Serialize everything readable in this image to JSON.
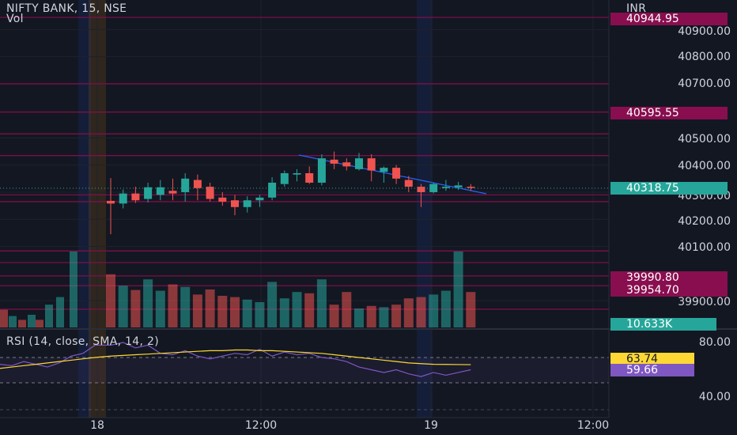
{
  "header": {
    "symbol_line": "NIFTY BANK, 15, NSE",
    "vol_label": "Vol",
    "currency": "INR"
  },
  "price_axis": {
    "labels": [
      "40900.00",
      "40800.00",
      "40700.00",
      "40500.00",
      "40400.00",
      "40300.00",
      "40200.00",
      "40100.00",
      "39900.00"
    ]
  },
  "price_tags": [
    {
      "label": "40944.95",
      "kind": "level",
      "color": "#880e4f"
    },
    {
      "label": "40595.55",
      "kind": "level",
      "color": "#880e4f"
    },
    {
      "label": "40318.75",
      "kind": "last",
      "color": "#26a69a"
    },
    {
      "label": "39990.80",
      "kind": "level",
      "color": "#880e4f"
    },
    {
      "label": "39954.70",
      "kind": "level",
      "color": "#880e4f"
    },
    {
      "label": "10.633K",
      "kind": "volume",
      "color": "#26a69a"
    }
  ],
  "rsi": {
    "legend": "RSI (14, close, SMA, 14, 2)",
    "axis_labels": [
      "80.00",
      "40.00"
    ],
    "value_tag": "59.66",
    "sma_tag": "63.74",
    "rsi_color": "#7e57c2",
    "sma_color": "#fdd835"
  },
  "time_axis": {
    "labels": [
      "18",
      "12:00",
      "19",
      "12:00"
    ]
  },
  "colors": {
    "bull": "#26a69a",
    "bear": "#ef5350",
    "level_line": "#880e4f",
    "trendline": "#2962ff"
  },
  "chart_data": {
    "type": "candlestick",
    "symbol": "NIFTY BANK",
    "interval": "15",
    "exchange": "NSE",
    "candles": [
      {
        "o": 40268,
        "h": 40352,
        "l": 40145,
        "c": 40258
      },
      {
        "o": 40258,
        "h": 40310,
        "l": 40240,
        "c": 40295
      },
      {
        "o": 40295,
        "h": 40320,
        "l": 40260,
        "c": 40270
      },
      {
        "o": 40275,
        "h": 40335,
        "l": 40262,
        "c": 40318
      },
      {
        "o": 40290,
        "h": 40345,
        "l": 40270,
        "c": 40318
      },
      {
        "o": 40305,
        "h": 40350,
        "l": 40270,
        "c": 40295
      },
      {
        "o": 40300,
        "h": 40370,
        "l": 40265,
        "c": 40350
      },
      {
        "o": 40345,
        "h": 40365,
        "l": 40270,
        "c": 40315
      },
      {
        "o": 40320,
        "h": 40335,
        "l": 40265,
        "c": 40275
      },
      {
        "o": 40280,
        "h": 40300,
        "l": 40250,
        "c": 40265
      },
      {
        "o": 40270,
        "h": 40290,
        "l": 40215,
        "c": 40245
      },
      {
        "o": 40245,
        "h": 40285,
        "l": 40225,
        "c": 40270
      },
      {
        "o": 40270,
        "h": 40290,
        "l": 40245,
        "c": 40280
      },
      {
        "o": 40280,
        "h": 40355,
        "l": 40270,
        "c": 40335
      },
      {
        "o": 40330,
        "h": 40380,
        "l": 40320,
        "c": 40370
      },
      {
        "o": 40365,
        "h": 40385,
        "l": 40340,
        "c": 40370
      },
      {
        "o": 40370,
        "h": 40395,
        "l": 40330,
        "c": 40335
      },
      {
        "o": 40335,
        "h": 40440,
        "l": 40325,
        "c": 40425
      },
      {
        "o": 40420,
        "h": 40450,
        "l": 40385,
        "c": 40405
      },
      {
        "o": 40410,
        "h": 40425,
        "l": 40380,
        "c": 40395
      },
      {
        "o": 40385,
        "h": 40445,
        "l": 40380,
        "c": 40425
      },
      {
        "o": 40425,
        "h": 40440,
        "l": 40340,
        "c": 40380
      },
      {
        "o": 40375,
        "h": 40395,
        "l": 40335,
        "c": 40390
      },
      {
        "o": 40390,
        "h": 40400,
        "l": 40330,
        "c": 40350
      },
      {
        "o": 40345,
        "h": 40360,
        "l": 40300,
        "c": 40320
      },
      {
        "o": 40320,
        "h": 40330,
        "l": 40245,
        "c": 40300
      },
      {
        "o": 40300,
        "h": 40335,
        "l": 40295,
        "c": 40330
      },
      {
        "o": 40315,
        "h": 40345,
        "l": 40305,
        "c": 40320
      },
      {
        "o": 40318,
        "h": 40338,
        "l": 40308,
        "c": 40325
      },
      {
        "o": 40320,
        "h": 40330,
        "l": 40305,
        "c": 40318
      }
    ],
    "volumes": [
      210,
      165,
      148,
      190,
      145,
      170,
      160,
      130,
      150,
      125,
      120,
      110,
      100,
      180,
      115,
      140,
      135,
      190,
      90,
      140,
      75,
      85,
      80,
      90,
      115,
      120,
      130,
      145,
      300,
      140
    ],
    "rsi_values": [
      78,
      80,
      76,
      78,
      72,
      71,
      74,
      70,
      68,
      70,
      72,
      71,
      75,
      70,
      73,
      71,
      72,
      69,
      68,
      66,
      62,
      60,
      58,
      60,
      57,
      55,
      58,
      56,
      58,
      60
    ],
    "rsi_sma": [
      70,
      70.5,
      71,
      71.5,
      72,
      72.5,
      73,
      73.5,
      74,
      74,
      74.5,
      74.5,
      74,
      74,
      73.5,
      73,
      72.5,
      72,
      71,
      70,
      69,
      68,
      67,
      66,
      65,
      64.5,
      64,
      63.9,
      63.8,
      63.74
    ]
  }
}
